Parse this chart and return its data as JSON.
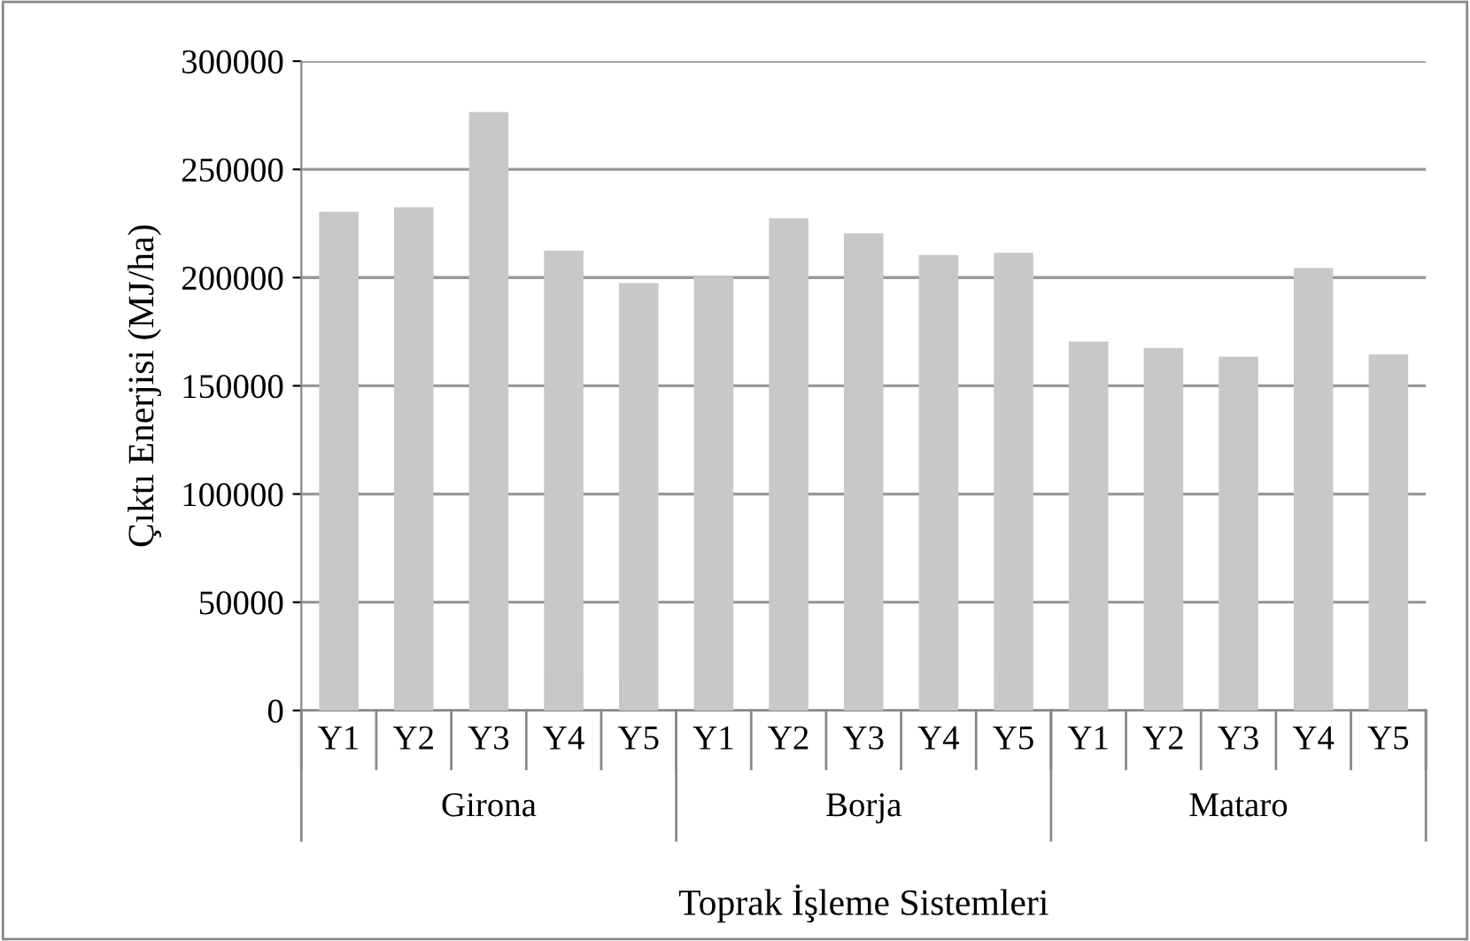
{
  "chart_data": {
    "type": "bar",
    "xlabel": "Toprak İşleme Sistemleri",
    "ylabel": "Çıktı Enerjisi (MJ/ha)",
    "categories": [
      "Y1",
      "Y2",
      "Y3",
      "Y4",
      "Y5",
      "Y1",
      "Y2",
      "Y3",
      "Y4",
      "Y5",
      "Y1",
      "Y2",
      "Y3",
      "Y4",
      "Y5"
    ],
    "values": [
      230000,
      232000,
      276000,
      212000,
      197000,
      200000,
      227000,
      220000,
      210000,
      211000,
      170000,
      167000,
      163000,
      204000,
      164000
    ],
    "color": "#c8c8c8",
    "annotations": [
      "Girona",
      "Borja",
      "Mataro"
    ],
    "ylim": [
      0,
      300000
    ],
    "yticks": [
      0,
      50000,
      100000,
      150000,
      200000,
      250000,
      300000
    ],
    "grid": "y"
  }
}
